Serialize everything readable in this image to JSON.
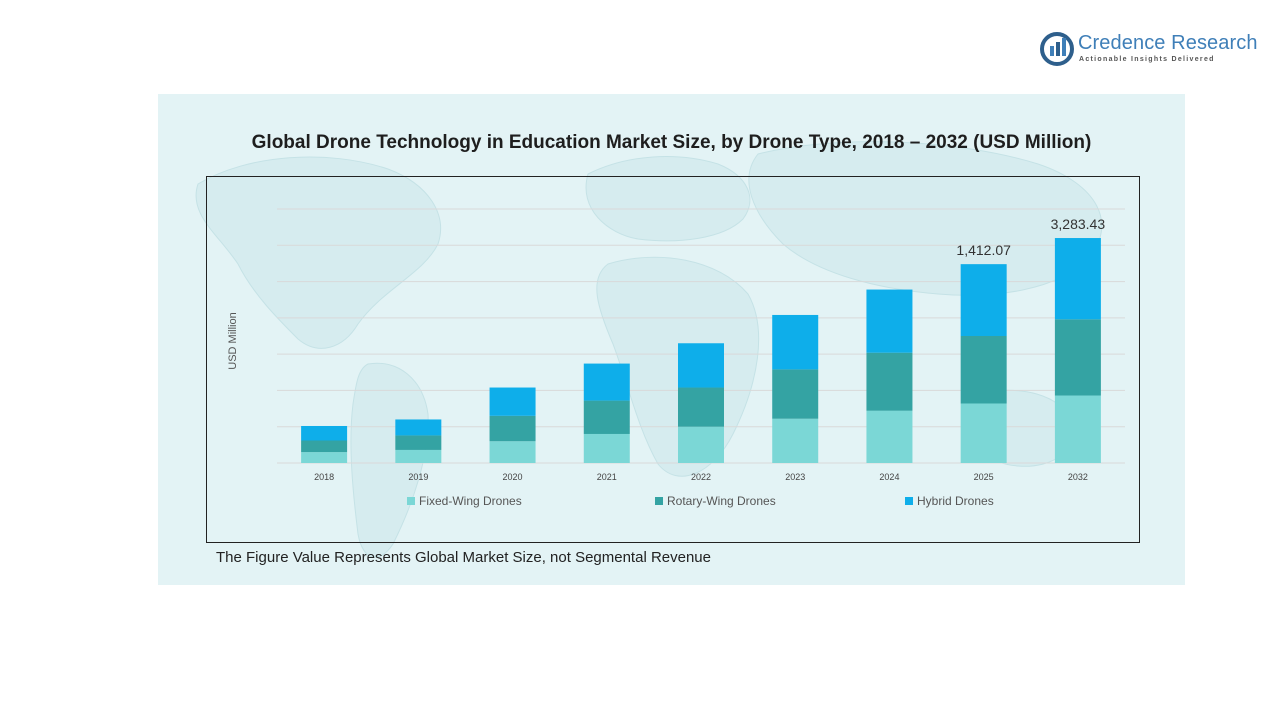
{
  "brand": {
    "name": "Credence Research",
    "tagline": "Actionable Insights Delivered",
    "colors": {
      "primary": "#3f7fb8",
      "dark": "#2e5f8c"
    }
  },
  "footnote": "The Figure Value Represents Global Market Size, not Segmental Revenue",
  "chart_data": {
    "type": "bar",
    "stacked": true,
    "title": "Global Drone Technology in Education Market Size, by Drone Type, 2018 – 2032 (USD Million)",
    "xlabel": "",
    "ylabel": "USD Million",
    "ylim": [
      0,
      3500
    ],
    "grid": true,
    "legend": "bottom",
    "categories": [
      "2018",
      "2019",
      "2020",
      "2021",
      "2022",
      "2023",
      "2024",
      "2025",
      "2032"
    ],
    "series": [
      {
        "name": "Fixed-Wing Drones",
        "color": "#7bd7d6",
        "values": [
          150,
          180,
          300,
          400,
          500,
          610,
          720,
          820,
          930
        ]
      },
      {
        "name": "Rotary-Wing Drones",
        "color": "#34a3a3",
        "values": [
          160,
          200,
          350,
          460,
          540,
          680,
          800,
          930,
          1050
        ]
      },
      {
        "name": "Hybrid Drones",
        "color": "#0eaeea",
        "values": [
          200,
          220,
          390,
          510,
          610,
          750,
          870,
          990,
          1120
        ]
      }
    ],
    "data_labels": [
      {
        "category": "2025",
        "text": "1,412.07"
      },
      {
        "category": "2032",
        "text": "3,283.43"
      }
    ]
  }
}
